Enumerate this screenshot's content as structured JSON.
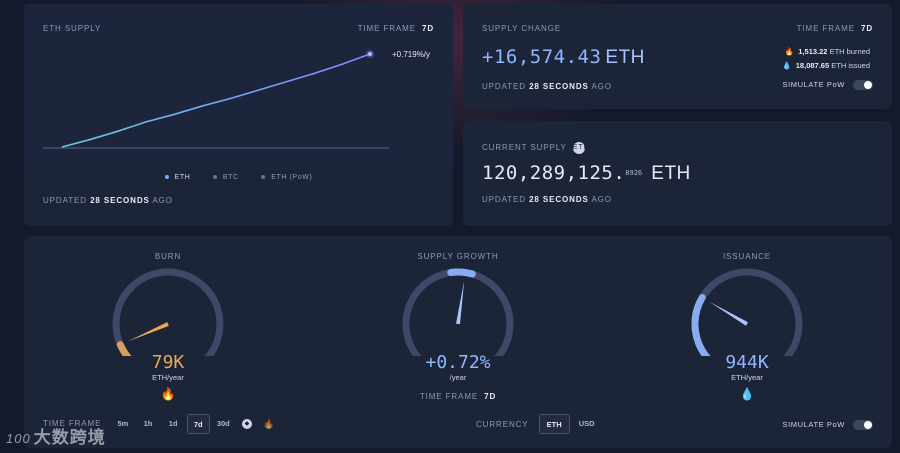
{
  "eth_supply": {
    "title": "ETH SUPPLY",
    "time_frame_label": "TIME FRAME",
    "time_frame_value": "7d",
    "rate": "+0.719%/y",
    "legend": [
      "ETH",
      "BTC",
      "ETH (PoW)"
    ],
    "updated_prefix": "UPDATED",
    "updated_value": "28 SECONDS",
    "updated_suffix": "AGO",
    "colors": {
      "line": "#7ea8ff",
      "legend_eth": "#7ea8ff",
      "legend_btc": "#6b7389",
      "legend_pow": "#6b7389"
    }
  },
  "supply_change": {
    "title": "SUPPLY CHANGE",
    "time_frame_label": "TIME FRAME",
    "time_frame_value": "7d",
    "value": "+16,574.43",
    "unit": "ETH",
    "burned_num": "1,513.22",
    "burned_label": "ETH burned",
    "issued_num": "18,087.65",
    "issued_label": "ETH issued",
    "updated_prefix": "UPDATED",
    "updated_value": "28 SECONDS",
    "updated_suffix": "AGO",
    "simulate_label": "SIMULATE PoW"
  },
  "current_supply": {
    "title": "CURRENT SUPPLY",
    "badge": "ETH",
    "integer": "120,289,125.",
    "decimals": "8926",
    "unit": "ETH",
    "updated_prefix": "UPDATED",
    "updated_value": "28 SECONDS",
    "updated_suffix": "AGO"
  },
  "gauges": {
    "burn": {
      "title": "BURN",
      "value": "79K",
      "unit": "ETH/year",
      "icon": "fire-icon",
      "level": 0.08,
      "color": "#e8a85b"
    },
    "growth": {
      "title": "SUPPLY GROWTH",
      "value": "+0.72%",
      "unit": "/year",
      "time_frame_label": "TIME FRAME",
      "time_frame_value": "7d",
      "level": 0.53,
      "color": "#8fb8ff"
    },
    "issuance": {
      "title": "ISSUANCE",
      "value": "944K",
      "unit": "ETH/year",
      "icon": "droplet-icon",
      "level": 0.28,
      "color": "#8fb8ff"
    }
  },
  "controls": {
    "time_frame_label": "TIME FRAME",
    "time_frames": [
      "5m",
      "1h",
      "1d",
      "7d",
      "30d"
    ],
    "active_time_frame": "7d",
    "currency_label": "CURRENCY",
    "currencies": [
      "ETH",
      "USD"
    ],
    "active_currency": "ETH",
    "simulate_label": "SIMULATE PoW"
  },
  "watermark": {
    "logo": "100",
    "text": "大数跨境"
  },
  "chart_data": {
    "type": "line",
    "title": "ETH SUPPLY",
    "xlabel": "",
    "ylabel": "",
    "series": [
      {
        "name": "ETH",
        "values": [
          0,
          0.08,
          0.17,
          0.27,
          0.35,
          0.44,
          0.52,
          0.61,
          0.7,
          0.79,
          0.89,
          1.0
        ]
      }
    ],
    "x": [
      0,
      1,
      2,
      3,
      4,
      5,
      6,
      7,
      8,
      9,
      10,
      11
    ],
    "ylim": [
      0,
      1
    ],
    "annotation": "+0.719%/y",
    "grid": false,
    "legend": "bottom-center"
  }
}
